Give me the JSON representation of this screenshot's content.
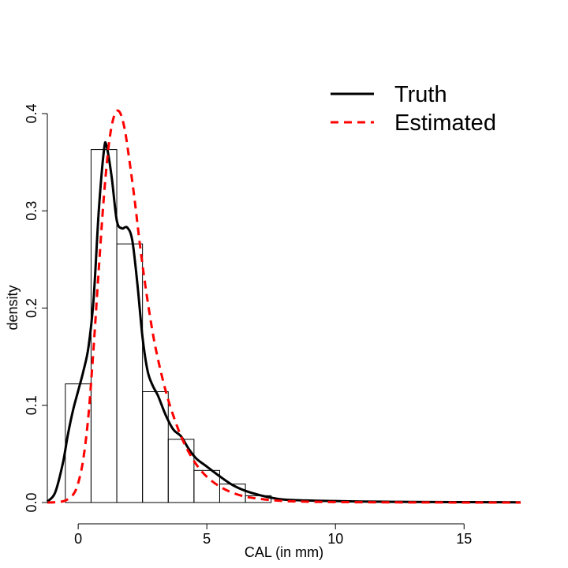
{
  "chart_data": {
    "type": "histogram-density",
    "title": "",
    "xlabel": "CAL (in mm)",
    "ylabel": "density",
    "xlim": [
      -1.2,
      17.2
    ],
    "ylim": [
      0,
      0.4
    ],
    "xticks": [
      0,
      5,
      10,
      15
    ],
    "xtick_labels": [
      "0",
      "5",
      "10",
      "15"
    ],
    "yticks": [
      0,
      0.1,
      0.2,
      0.3,
      0.4
    ],
    "ytick_labels": [
      "0.0",
      "0.1",
      "0.2",
      "0.3",
      "0.4"
    ],
    "grid": false,
    "legend_position": "top-right",
    "histogram": {
      "bin_edges": [
        -0.5,
        0.5,
        1.5,
        2.5,
        3.5,
        4.5,
        5.5,
        6.5,
        7.5
      ],
      "values": [
        0.122,
        0.363,
        0.266,
        0.114,
        0.065,
        0.033,
        0.019,
        0.007
      ]
    },
    "series": [
      {
        "name": "Truth",
        "color": "#000000",
        "line_style": "solid",
        "x": [
          -1.2,
          -0.9,
          -0.6,
          -0.4,
          -0.2,
          0.0,
          0.2,
          0.4,
          0.6,
          0.8,
          1.0,
          1.1,
          1.3,
          1.5,
          1.7,
          1.9,
          2.1,
          2.3,
          2.5,
          2.7,
          2.9,
          3.1,
          3.4,
          3.7,
          4.0,
          4.3,
          4.6,
          5.0,
          5.5,
          6.0,
          6.5,
          7.0,
          7.5,
          8.0,
          9.0,
          10.0,
          11.0,
          12.0,
          13.0,
          14.0,
          15.0,
          16.0,
          17.2
        ],
        "y": [
          0.001,
          0.01,
          0.04,
          0.07,
          0.095,
          0.115,
          0.135,
          0.16,
          0.21,
          0.3,
          0.362,
          0.367,
          0.335,
          0.29,
          0.282,
          0.283,
          0.27,
          0.225,
          0.17,
          0.135,
          0.12,
          0.11,
          0.09,
          0.075,
          0.068,
          0.055,
          0.045,
          0.037,
          0.027,
          0.018,
          0.012,
          0.008,
          0.005,
          0.003,
          0.002,
          0.0015,
          0.001,
          0.0008,
          0.0006,
          0.0005,
          0.0004,
          0.0003,
          0.0002
        ]
      },
      {
        "name": "Estimated",
        "color": "#ff0000",
        "line_style": "dashed",
        "x": [
          -1.2,
          -0.8,
          -0.5,
          -0.2,
          0.0,
          0.2,
          0.4,
          0.6,
          0.8,
          1.0,
          1.2,
          1.4,
          1.6,
          1.8,
          2.0,
          2.2,
          2.4,
          2.6,
          2.8,
          3.0,
          3.3,
          3.6,
          4.0,
          4.4,
          4.8,
          5.2,
          5.6,
          6.0,
          6.5,
          7.0,
          7.5,
          8.0,
          9.0,
          10.0,
          11.0,
          12.0,
          13.0,
          14.0,
          15.0,
          16.0,
          17.2
        ],
        "y": [
          0.0,
          0.0005,
          0.002,
          0.008,
          0.02,
          0.045,
          0.09,
          0.16,
          0.24,
          0.315,
          0.37,
          0.398,
          0.402,
          0.385,
          0.35,
          0.31,
          0.265,
          0.225,
          0.19,
          0.16,
          0.125,
          0.097,
          0.068,
          0.047,
          0.032,
          0.022,
          0.015,
          0.01,
          0.006,
          0.004,
          0.0025,
          0.0015,
          0.0008,
          0.0005,
          0.0003,
          0.0002,
          0.0001,
          0.0001,
          0.0,
          0.0,
          0.0
        ]
      }
    ]
  }
}
